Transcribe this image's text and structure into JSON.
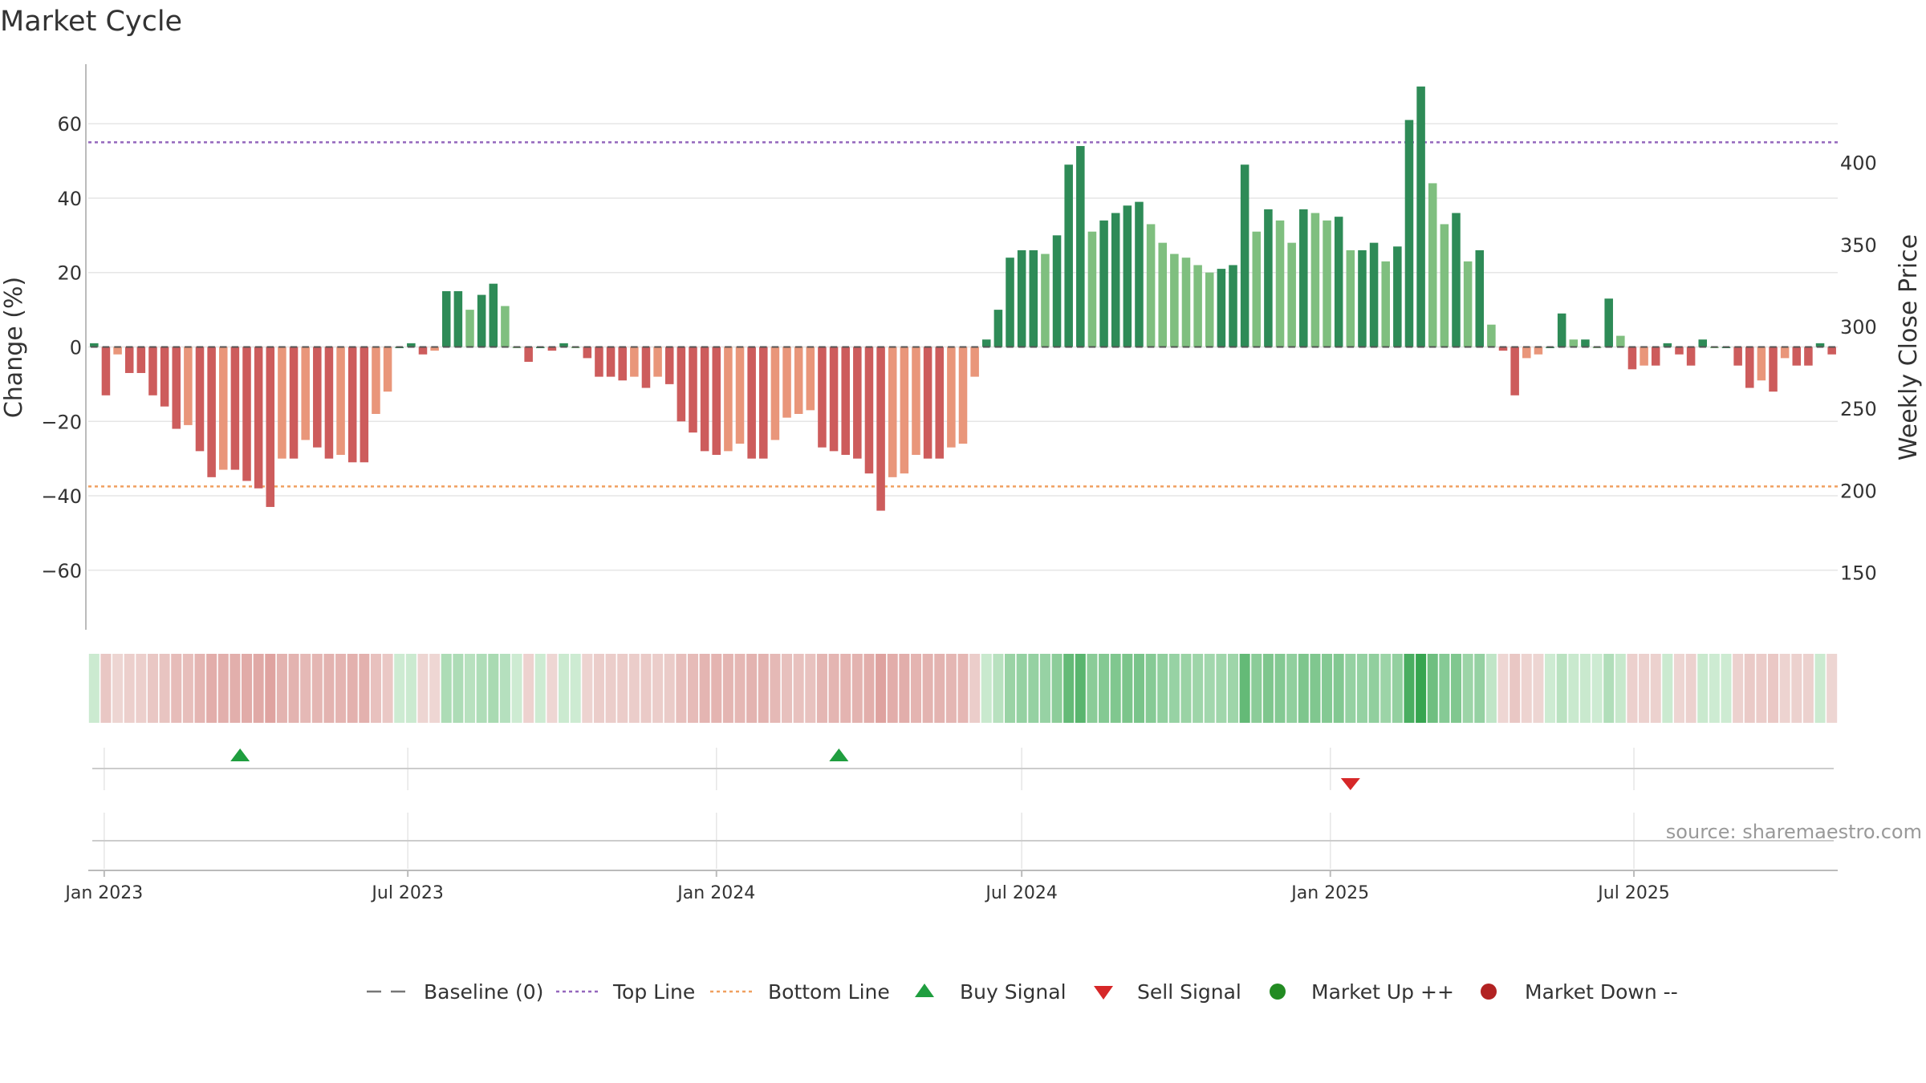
{
  "chart_data": {
    "type": "bar",
    "title": "Market Cycle",
    "ylabel": "Change (%)",
    "y2label": "Weekly Close Price",
    "ylim": [
      -76,
      76
    ],
    "y2lim": [
      115,
      460
    ],
    "yticks": [
      60,
      40,
      20,
      0,
      -20,
      -40,
      -60
    ],
    "ytick_labels": [
      "60",
      "40",
      "20",
      "0",
      "−20",
      "−40",
      "−60"
    ],
    "y2ticks": [
      400,
      350,
      300,
      250,
      200,
      150
    ],
    "y2tick_labels": [
      "400",
      "350",
      "300",
      "250",
      "200",
      "150"
    ],
    "top_line": 55,
    "bottom_line": -37.5,
    "x_start": "2022-12-26",
    "week_days": 7,
    "xtick_dates": [
      "2023-01-01",
      "2023-07-01",
      "2024-01-01",
      "2024-07-01",
      "2025-01-01",
      "2025-07-01"
    ],
    "xtick_labels": [
      "Jan 2023",
      "Jul 2023",
      "Jan 2024",
      "Jul 2024",
      "Jan 2025",
      "Jul 2025"
    ],
    "values": [
      1,
      -13,
      -2,
      -7,
      -7,
      -13,
      -16,
      -22,
      -21,
      -28,
      -35,
      -33,
      -33,
      -36,
      -38,
      -43,
      -30,
      -30,
      -25,
      -27,
      -30,
      -29,
      -31,
      -31,
      -18,
      -12,
      0,
      1,
      -2,
      -1,
      15,
      15,
      10,
      14,
      17,
      11,
      0,
      -4,
      0,
      -1,
      1,
      0,
      -3,
      -8,
      -8,
      -9,
      -8,
      -11,
      -8,
      -10,
      -20,
      -23,
      -28,
      -29,
      -28,
      -26,
      -30,
      -30,
      -25,
      -19,
      -18,
      -17,
      -27,
      -28,
      -29,
      -30,
      -34,
      -44,
      -35,
      -34,
      -29,
      -30,
      -30,
      -27,
      -26,
      -8,
      2,
      10,
      24,
      26,
      26,
      25,
      30,
      49,
      54,
      31,
      34,
      36,
      38,
      39,
      33,
      28,
      25,
      24,
      22,
      20,
      21,
      22,
      49,
      31,
      37,
      34,
      28,
      37,
      36,
      34,
      35,
      26,
      26,
      28,
      23,
      27,
      61,
      70,
      44,
      33,
      36,
      23,
      26,
      6,
      -1,
      -13,
      -3,
      -2,
      0,
      9,
      2,
      2,
      0,
      13,
      3,
      -6,
      -5,
      -5,
      1,
      -2,
      -5,
      2,
      0,
      0,
      -5,
      -11,
      -9,
      -12,
      -3,
      -5,
      -5,
      1,
      -2
    ],
    "signals": [
      {
        "type": "buy",
        "date": "2023-03-23"
      },
      {
        "type": "buy",
        "date": "2024-03-14"
      },
      {
        "type": "sell",
        "date": "2025-01-13"
      }
    ],
    "legend": [
      {
        "label": "Baseline (0)",
        "kind": "dash",
        "color": "#777777"
      },
      {
        "label": "Top Line",
        "kind": "dot",
        "color": "#9467bd"
      },
      {
        "label": "Bottom Line",
        "kind": "dot",
        "color": "#f0a060"
      },
      {
        "label": "Buy Signal",
        "kind": "tri-up",
        "color": "#1f9e3f"
      },
      {
        "label": "Sell Signal",
        "kind": "tri-down",
        "color": "#d62728"
      },
      {
        "label": "Market Up ++",
        "kind": "dot-circle",
        "color": "#228b22"
      },
      {
        "label": "Market Down --",
        "kind": "dot-circle",
        "color": "#b22222"
      }
    ],
    "legend_position": "bottom-center",
    "colors": {
      "up_dark": "#2e8b57",
      "up_light": "#7fbf7f",
      "down_dark": "#cd5c5c",
      "down_light": "#e9967a",
      "top_line": "#9467bd",
      "bottom_line": "#f0a060",
      "grid": "#e6e6e6"
    },
    "source": "source: sharemaestro.com"
  }
}
